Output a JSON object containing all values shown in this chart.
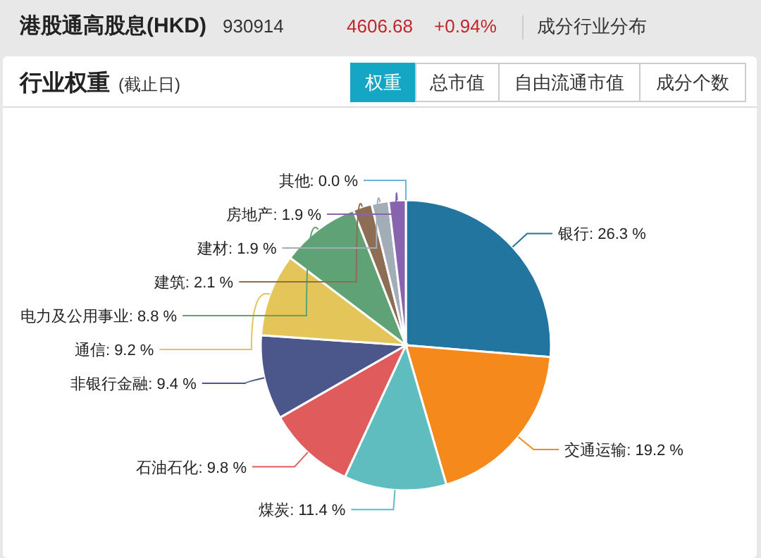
{
  "chart_data": {
    "type": "pie",
    "title": "行业权重",
    "subtitle": "(截止日)",
    "annotations": [
      "港股通高股息(HKD)",
      "930914",
      "4606.68",
      "+0.94%",
      "成分行业分布",
      "权重",
      "总市值",
      "自由流通市值",
      "成分个数"
    ],
    "categories": [
      "银行",
      "交通运输",
      "煤炭",
      "石油石化",
      "非银行金融",
      "通信",
      "电力及公用事业",
      "建筑",
      "建材",
      "房地产",
      "其他"
    ],
    "values": [
      26.3,
      19.2,
      11.4,
      9.8,
      9.4,
      9.2,
      8.8,
      2.1,
      1.9,
      1.9,
      0.0
    ],
    "colors": [
      "#21759f",
      "#f5891c",
      "#5fbdbf",
      "#e05c5c",
      "#4b578a",
      "#e3c55a",
      "#5fa275",
      "#8e6d55",
      "#a3adb8",
      "#8764ad",
      "#6ab4dc"
    ],
    "value_labels": [
      "26.3 %",
      "19.2 %",
      "11.4 %",
      "9.8 %",
      "9.4 %",
      "9.2 %",
      "8.8 %",
      "2.1 %",
      "1.9 %",
      "1.9 %",
      "0.0 %"
    ]
  }
}
